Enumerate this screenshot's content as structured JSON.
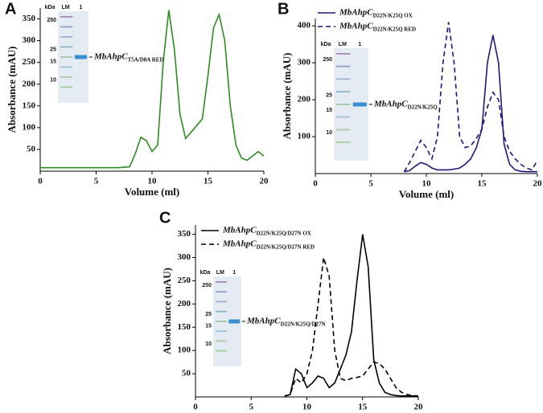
{
  "chart_data": [
    {
      "type": "line",
      "label": "A",
      "xlabel": "Volume (ml)",
      "ylabel": "Absorbance (mAU)",
      "xlim": [
        0,
        20
      ],
      "ylim": [
        0,
        375
      ],
      "xticks": [
        0,
        5,
        10,
        15,
        20
      ],
      "yticks": [
        50,
        100,
        150,
        200,
        250,
        300,
        350
      ],
      "x": [
        0,
        2,
        4,
        6,
        7,
        8,
        8.5,
        9,
        9.5,
        10,
        10.5,
        11,
        11.5,
        12,
        12.5,
        13,
        13.5,
        14,
        14.5,
        15,
        15.5,
        16,
        16.5,
        17,
        17.5,
        18,
        18.5,
        19,
        19.5,
        20
      ],
      "series": [
        {
          "color": "#2e8b22",
          "line_style": "solid",
          "values": [
            8,
            8,
            8,
            8,
            8,
            10,
            40,
            78,
            70,
            45,
            60,
            250,
            370,
            280,
            130,
            75,
            90,
            105,
            120,
            220,
            330,
            360,
            300,
            150,
            60,
            30,
            25,
            35,
            45,
            35
          ]
        }
      ],
      "gel": {
        "units": "kDa",
        "lanes": [
          "LM",
          "1"
        ],
        "markers": [
          250,
          25,
          15,
          10
        ],
        "band_label": "MbAhpC",
        "band_label_sub": "T5A/D8A RED"
      }
    },
    {
      "type": "line",
      "label": "B",
      "xlabel": "Volume (ml)",
      "ylabel": "Absorbance (mAU)",
      "xlim": [
        0,
        20
      ],
      "ylim": [
        0,
        420
      ],
      "xticks": [
        0,
        5,
        10,
        15,
        20
      ],
      "yticks": [
        100,
        200,
        300,
        400
      ],
      "x": [
        8,
        8.5,
        9,
        9.5,
        10,
        10.5,
        11,
        11.5,
        12,
        12.5,
        13,
        13.5,
        14,
        14.5,
        15,
        15.5,
        16,
        16.5,
        17,
        17.5,
        18,
        18.5,
        19,
        19.5,
        20
      ],
      "series": [
        {
          "name": "MbAhpC",
          "name_sub": "D22N/K25Q OX",
          "color": "#1a1a7a",
          "line_style": "solid",
          "values": [
            5,
            8,
            20,
            30,
            25,
            15,
            10,
            10,
            10,
            12,
            15,
            25,
            40,
            70,
            120,
            300,
            375,
            300,
            80,
            25,
            10,
            6,
            5,
            5,
            5
          ]
        },
        {
          "name": "MbAhpC",
          "name_sub": "D22N/K25Q RED",
          "color": "#1a1a7a",
          "line_style": "dashed",
          "values": [
            5,
            30,
            60,
            90,
            70,
            40,
            100,
            300,
            410,
            300,
            100,
            70,
            75,
            95,
            120,
            180,
            220,
            200,
            100,
            60,
            40,
            25,
            15,
            10,
            35
          ]
        }
      ],
      "gel": {
        "units": "kDa",
        "lanes": [
          "LM",
          "1"
        ],
        "markers": [
          250,
          25,
          15,
          10
        ],
        "band_label": "MbAhpC",
        "band_label_sub": "D22N/K25Q"
      }
    },
    {
      "type": "line",
      "label": "C",
      "xlabel": "Volume (ml)",
      "ylabel": "Absorbance (mAU)",
      "xlim": [
        0,
        20
      ],
      "ylim": [
        0,
        370
      ],
      "xticks": [
        0,
        5,
        10,
        15,
        20
      ],
      "yticks": [
        50,
        100,
        150,
        200,
        250,
        300,
        350
      ],
      "x": [
        8,
        8.5,
        9,
        9.5,
        10,
        10.5,
        11,
        11.5,
        12,
        12.5,
        13,
        13.5,
        14,
        14.5,
        15,
        15.5,
        16,
        16.5,
        17,
        17.5,
        18,
        18.5,
        19,
        19.5,
        20
      ],
      "series": [
        {
          "name": "MbAhpC",
          "name_sub": "D22N/K25Q/D27N OX",
          "color": "#000000",
          "line_style": "solid",
          "values": [
            2,
            5,
            60,
            50,
            20,
            30,
            45,
            40,
            20,
            30,
            60,
            90,
            140,
            250,
            350,
            280,
            80,
            30,
            10,
            5,
            3,
            2,
            2,
            2,
            2
          ]
        },
        {
          "name": "MbAhpC",
          "name_sub": "D22N/K25Q/D27N RED",
          "color": "#000000",
          "line_style": "dashed",
          "values": [
            2,
            5,
            40,
            30,
            50,
            100,
            200,
            300,
            260,
            100,
            40,
            35,
            40,
            42,
            45,
            60,
            75,
            72,
            60,
            40,
            20,
            10,
            5,
            3,
            2
          ]
        }
      ],
      "gel": {
        "units": "kDa",
        "lanes": [
          "LM",
          "1"
        ],
        "markers": [
          250,
          25,
          15,
          10
        ],
        "band_label": "MbAhpC",
        "band_label_sub": "D22N/K25Q/D27N"
      }
    }
  ]
}
